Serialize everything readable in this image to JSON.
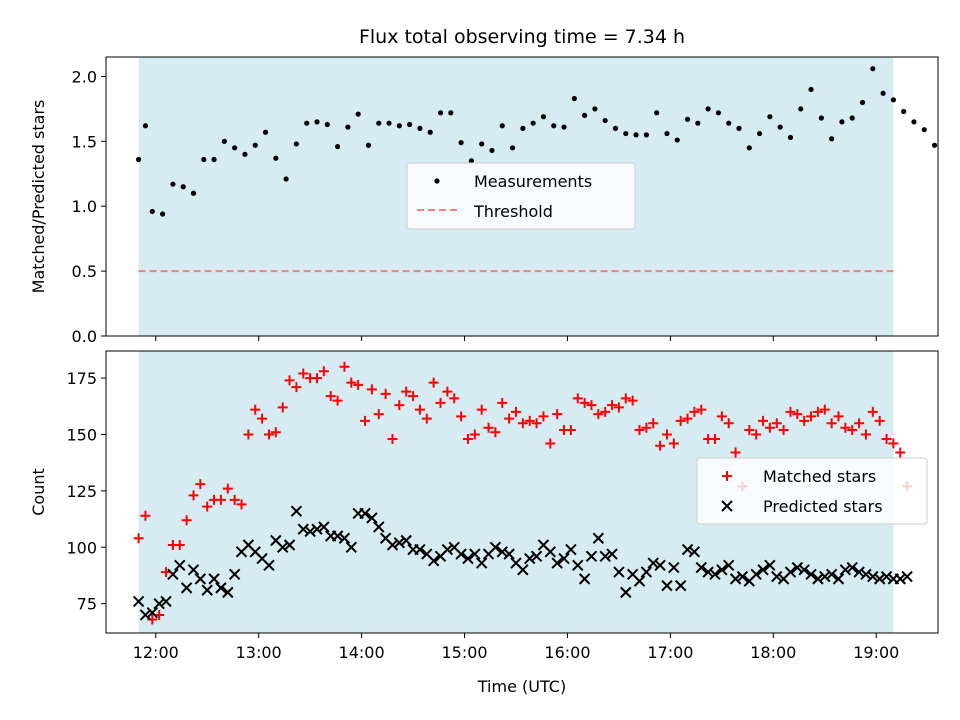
{
  "chart_data": [
    {
      "type": "scatter",
      "title": "Flux total observing time = 7.34 h",
      "xlabel": "",
      "ylabel": "Matched/Predicted stars",
      "x_ticks": [
        "12:00",
        "13:00",
        "14:00",
        "15:00",
        "16:00",
        "17:00",
        "18:00",
        "19:00"
      ],
      "xlim": [
        "11:31",
        "19:36"
      ],
      "ylim": [
        0,
        2.15
      ],
      "y_ticks": [
        "0.0",
        "0.5",
        "1.0",
        "1.5",
        "2.0"
      ],
      "observing_window": [
        "11:50",
        "19:10"
      ],
      "threshold": 0.5,
      "legend_position": "center",
      "colors": {
        "measurements": "#000000",
        "threshold": "#f08080",
        "window": "#add8e6"
      },
      "series": [
        {
          "name": "Measurements",
          "x": [
            "11:50",
            "11:54",
            "11:58",
            "12:04",
            "12:10",
            "12:16",
            "12:22",
            "12:28",
            "12:34",
            "12:40",
            "12:46",
            "12:52",
            "12:58",
            "13:04",
            "13:10",
            "13:16",
            "13:22",
            "13:28",
            "13:34",
            "13:40",
            "13:46",
            "13:52",
            "13:58",
            "14:04",
            "14:10",
            "14:16",
            "14:22",
            "14:28",
            "14:34",
            "14:40",
            "14:46",
            "14:52",
            "14:58",
            "15:04",
            "15:10",
            "15:16",
            "15:22",
            "15:28",
            "15:34",
            "15:40",
            "15:46",
            "15:52",
            "15:58",
            "16:04",
            "16:10",
            "16:16",
            "16:22",
            "16:28",
            "16:34",
            "16:40",
            "16:46",
            "16:52",
            "16:58",
            "17:04",
            "17:10",
            "17:16",
            "17:22",
            "17:28",
            "17:34",
            "17:40",
            "17:46",
            "17:52",
            "17:58",
            "18:04",
            "18:10",
            "18:16",
            "18:22",
            "18:28",
            "18:34",
            "18:40",
            "18:46",
            "18:52",
            "18:58",
            "19:04",
            "19:10",
            "19:16",
            "19:22",
            "19:28",
            "19:34"
          ],
          "y": [
            1.36,
            1.62,
            0.96,
            0.94,
            1.17,
            1.15,
            1.1,
            1.36,
            1.36,
            1.5,
            1.45,
            1.4,
            1.47,
            1.57,
            1.37,
            1.21,
            1.48,
            1.64,
            1.65,
            1.63,
            1.46,
            1.61,
            1.71,
            1.47,
            1.64,
            1.64,
            1.62,
            1.63,
            1.6,
            1.57,
            1.72,
            1.72,
            1.49,
            1.35,
            1.48,
            1.43,
            1.62,
            1.45,
            1.6,
            1.64,
            1.69,
            1.62,
            1.61,
            1.83,
            1.7,
            1.75,
            1.66,
            1.6,
            1.56,
            1.55,
            1.55,
            1.72,
            1.56,
            1.51,
            1.67,
            1.64,
            1.75,
            1.72,
            1.64,
            1.6,
            1.45,
            1.56,
            1.69,
            1.61,
            1.53,
            1.75,
            1.9,
            1.68,
            1.52,
            1.65,
            1.68,
            1.8,
            2.06,
            1.87,
            1.82,
            1.73,
            1.65,
            1.59,
            1.47
          ]
        }
      ]
    },
    {
      "type": "scatter",
      "title": "",
      "xlabel": "Time (UTC)",
      "ylabel": "Count",
      "x_ticks": [
        "12:00",
        "13:00",
        "14:00",
        "15:00",
        "16:00",
        "17:00",
        "18:00",
        "19:00"
      ],
      "xlim": [
        "11:31",
        "19:36"
      ],
      "ylim": [
        62,
        187
      ],
      "y_ticks": [
        "75",
        "100",
        "125",
        "150",
        "175"
      ],
      "observing_window": [
        "11:50",
        "19:10"
      ],
      "legend_position": "center-right",
      "colors": {
        "matched": "#ff0000",
        "predicted": "#000000",
        "window": "#add8e6"
      },
      "series": [
        {
          "name": "Matched stars",
          "x": [
            "11:50",
            "11:54",
            "11:58",
            "12:02",
            "12:06",
            "12:10",
            "12:14",
            "12:18",
            "12:22",
            "12:26",
            "12:30",
            "12:34",
            "12:38",
            "12:42",
            "12:46",
            "12:50",
            "12:54",
            "12:58",
            "13:02",
            "13:06",
            "13:10",
            "13:14",
            "13:18",
            "13:22",
            "13:26",
            "13:30",
            "13:34",
            "13:38",
            "13:42",
            "13:46",
            "13:50",
            "13:54",
            "13:58",
            "14:02",
            "14:06",
            "14:10",
            "14:14",
            "14:18",
            "14:22",
            "14:26",
            "14:30",
            "14:34",
            "14:38",
            "14:42",
            "14:46",
            "14:50",
            "14:54",
            "14:58",
            "15:02",
            "15:06",
            "15:10",
            "15:14",
            "15:18",
            "15:22",
            "15:26",
            "15:30",
            "15:34",
            "15:38",
            "15:42",
            "15:46",
            "15:50",
            "15:54",
            "15:58",
            "16:02",
            "16:06",
            "16:10",
            "16:14",
            "16:18",
            "16:22",
            "16:26",
            "16:30",
            "16:34",
            "16:38",
            "16:42",
            "16:46",
            "16:50",
            "16:54",
            "16:58",
            "17:02",
            "17:06",
            "17:10",
            "17:14",
            "17:18",
            "17:22",
            "17:26",
            "17:30",
            "17:34",
            "17:38",
            "17:42",
            "17:46",
            "17:50",
            "17:54",
            "17:58",
            "18:02",
            "18:06",
            "18:10",
            "18:14",
            "18:18",
            "18:22",
            "18:26",
            "18:30",
            "18:34",
            "18:38",
            "18:42",
            "18:46",
            "18:50",
            "18:54",
            "18:58",
            "19:02",
            "19:06",
            "19:10",
            "19:14",
            "19:18"
          ],
          "y": [
            104,
            114,
            68,
            70,
            89,
            101,
            101,
            112,
            123,
            128,
            118,
            121,
            121,
            126,
            121,
            119,
            150,
            161,
            157,
            150,
            151,
            162,
            174,
            171,
            177,
            175,
            175,
            178,
            167,
            165,
            180,
            173,
            172,
            156,
            170,
            159,
            168,
            148,
            163,
            169,
            167,
            161,
            157,
            173,
            164,
            169,
            166,
            158,
            148,
            150,
            161,
            153,
            151,
            164,
            157,
            160,
            155,
            156,
            155,
            158,
            146,
            159,
            152,
            152,
            166,
            164,
            163,
            159,
            160,
            163,
            162,
            166,
            165,
            152,
            153,
            155,
            145,
            150,
            146,
            156,
            157,
            160,
            161,
            148,
            148,
            158,
            155,
            142,
            127,
            152,
            150,
            156,
            153,
            155,
            152,
            160,
            159,
            156,
            158,
            160,
            161,
            155,
            158,
            153,
            152,
            155,
            150,
            160,
            156,
            148,
            146,
            142,
            127
          ]
        },
        {
          "name": "Predicted stars",
          "x": [
            "11:50",
            "11:54",
            "11:58",
            "12:02",
            "12:06",
            "12:10",
            "12:14",
            "12:18",
            "12:22",
            "12:26",
            "12:30",
            "12:34",
            "12:38",
            "12:42",
            "12:46",
            "12:50",
            "12:54",
            "12:58",
            "13:02",
            "13:06",
            "13:10",
            "13:14",
            "13:18",
            "13:22",
            "13:26",
            "13:30",
            "13:34",
            "13:38",
            "13:42",
            "13:46",
            "13:50",
            "13:54",
            "13:58",
            "14:02",
            "14:06",
            "14:10",
            "14:14",
            "14:18",
            "14:22",
            "14:26",
            "14:30",
            "14:34",
            "14:38",
            "14:42",
            "14:46",
            "14:50",
            "14:54",
            "14:58",
            "15:02",
            "15:06",
            "15:10",
            "15:14",
            "15:18",
            "15:22",
            "15:26",
            "15:30",
            "15:34",
            "15:38",
            "15:42",
            "15:46",
            "15:50",
            "15:54",
            "15:58",
            "16:02",
            "16:06",
            "16:10",
            "16:14",
            "16:18",
            "16:22",
            "16:26",
            "16:30",
            "16:34",
            "16:38",
            "16:42",
            "16:46",
            "16:50",
            "16:54",
            "16:58",
            "17:02",
            "17:06",
            "17:10",
            "17:14",
            "17:18",
            "17:22",
            "17:26",
            "17:30",
            "17:34",
            "17:38",
            "17:42",
            "17:46",
            "17:50",
            "17:54",
            "17:58",
            "18:02",
            "18:06",
            "18:10",
            "18:14",
            "18:18",
            "18:22",
            "18:26",
            "18:30",
            "18:34",
            "18:38",
            "18:42",
            "18:46",
            "18:50",
            "18:54",
            "18:58",
            "19:02",
            "19:06",
            "19:10",
            "19:14",
            "19:18"
          ],
          "y": [
            76,
            70,
            71,
            75,
            76,
            88,
            92,
            82,
            90,
            86,
            81,
            86,
            82,
            80,
            88,
            98,
            101,
            98,
            95,
            92,
            103,
            100,
            101,
            116,
            108,
            107,
            108,
            109,
            105,
            105,
            104,
            100,
            115,
            115,
            113,
            109,
            104,
            101,
            102,
            103,
            99,
            99,
            97,
            94,
            96,
            99,
            100,
            97,
            95,
            97,
            93,
            97,
            100,
            98,
            97,
            93,
            90,
            95,
            96,
            101,
            98,
            93,
            95,
            99,
            92,
            86,
            96,
            104,
            96,
            97,
            89,
            80,
            88,
            85,
            89,
            93,
            92,
            83,
            91,
            83,
            99,
            98,
            91,
            89,
            88,
            90,
            92,
            86,
            87,
            85,
            88,
            90,
            92,
            87,
            86,
            89,
            91,
            90,
            88,
            86,
            87,
            88,
            86,
            90,
            91,
            89,
            88,
            87,
            86,
            87,
            86,
            86,
            87
          ]
        }
      ]
    }
  ]
}
